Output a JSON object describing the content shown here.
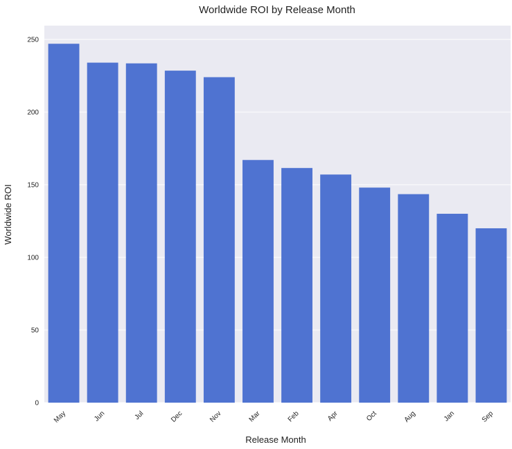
{
  "chart_data": {
    "type": "bar",
    "title": "Worldwide ROI by Release Month",
    "xlabel": "Release Month",
    "ylabel": "Worldwide ROI",
    "categories": [
      "May",
      "Jun",
      "Jul",
      "Dec",
      "Nov",
      "Mar",
      "Feb",
      "Apr",
      "Oct",
      "Aug",
      "Jan",
      "Sep"
    ],
    "values": [
      247,
      234,
      233.5,
      228.5,
      224,
      167,
      161.5,
      157,
      148,
      143.5,
      130,
      120
    ],
    "ylim": [
      0,
      259.5
    ],
    "yticks": [
      0,
      50,
      100,
      150,
      200,
      250
    ],
    "grid": true,
    "legend": "none",
    "colors": {
      "bar": "#4f73d1",
      "plot_background": "#eaeaf2",
      "grid": "#ffffff"
    }
  }
}
